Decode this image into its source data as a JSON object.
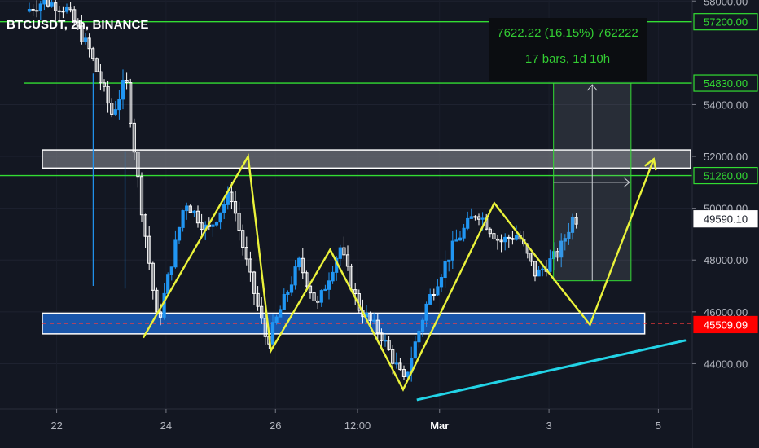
{
  "chart_title": "BTCUSDT, 2h, BINANCE",
  "info_box": {
    "line1": "7622.22 (16.15%) 762222",
    "line2": "17 bars, 1d 10h"
  },
  "colors": {
    "background": "#131722",
    "bull_candle": "#2196f3",
    "bear_candle": "#ffffff",
    "zigzag": "#eaf23a",
    "trendline": "#22d3e6",
    "level_line": "#33dd33",
    "support_zone_fill": "#1c62c2",
    "resistance_zone_fill": "#6f727a",
    "price_marker_red": "#ff0000"
  },
  "chart_data": {
    "type": "candlestick",
    "title": "BTCUSDT, 2h, BINANCE",
    "y_range": [
      42300,
      59600
    ],
    "y_ticks": [
      {
        "value": 58000,
        "label": "58000.00"
      },
      {
        "value": 54000,
        "label": "54000.00"
      },
      {
        "value": 52000,
        "label": "52000.00"
      },
      {
        "value": 50000,
        "label": "50000.00"
      },
      {
        "value": 48000,
        "label": "48000.00"
      },
      {
        "value": 46000,
        "label": "46000.00"
      },
      {
        "value": 44000,
        "label": "44000.00"
      }
    ],
    "price_labels": [
      {
        "value": 57200,
        "label": "57200.00",
        "style": "green"
      },
      {
        "value": 54830,
        "label": "54830.00",
        "style": "green"
      },
      {
        "value": 51260,
        "label": "51260.00",
        "style": "green"
      },
      {
        "value": 49590.1,
        "label": "49590.10",
        "style": "white"
      },
      {
        "value": 45509.09,
        "label": "45509.09",
        "style": "red"
      }
    ],
    "x_range": [
      "2021-02-21T12:00",
      "2021-03-05T12:00"
    ],
    "x_ticks": [
      {
        "t": "2021-02-22T00:00",
        "label": "22"
      },
      {
        "t": "2021-02-24T00:00",
        "label": "24"
      },
      {
        "t": "2021-02-26T00:00",
        "label": "26"
      },
      {
        "t": "2021-02-27T12:00",
        "label": "12:00"
      },
      {
        "t": "2021-03-01T00:00",
        "label": "Mar"
      },
      {
        "t": "2021-03-03T00:00",
        "label": "3"
      },
      {
        "t": "2021-03-05T00:00",
        "label": "5"
      }
    ],
    "anchors": [
      {
        "t": "2021-02-21T12:00",
        "price": 57600
      },
      {
        "t": "2021-02-21T20:00",
        "price": 58000
      },
      {
        "t": "2021-02-22T06:00",
        "price": 57700
      },
      {
        "t": "2021-02-22T16:00",
        "price": 56100
      },
      {
        "t": "2021-02-23T02:00",
        "price": 53600
      },
      {
        "t": "2021-02-23T08:00",
        "price": 55000
      },
      {
        "t": "2021-02-23T14:00",
        "price": 50600
      },
      {
        "t": "2021-02-23T22:00",
        "price": 45500
      },
      {
        "t": "2021-02-24T10:00",
        "price": 50300
      },
      {
        "t": "2021-02-24T20:00",
        "price": 49100
      },
      {
        "t": "2021-02-25T06:00",
        "price": 50600
      },
      {
        "t": "2021-02-25T14:00",
        "price": 47500
      },
      {
        "t": "2021-02-25T22:00",
        "price": 44800
      },
      {
        "t": "2021-02-26T12:00",
        "price": 47900
      },
      {
        "t": "2021-02-26T20:00",
        "price": 46200
      },
      {
        "t": "2021-02-27T06:00",
        "price": 48500
      },
      {
        "t": "2021-02-27T14:00",
        "price": 46200
      },
      {
        "t": "2021-02-28T00:00",
        "price": 45100
      },
      {
        "t": "2021-02-28T10:00",
        "price": 43300
      },
      {
        "t": "2021-02-28T20:00",
        "price": 46300
      },
      {
        "t": "2021-03-01T08:00",
        "price": 48600
      },
      {
        "t": "2021-03-01T18:00",
        "price": 49900
      },
      {
        "t": "2021-03-02T04:00",
        "price": 48700
      },
      {
        "t": "2021-03-02T12:00",
        "price": 49000
      },
      {
        "t": "2021-03-02T20:00",
        "price": 47400
      },
      {
        "t": "2021-03-03T06:00",
        "price": 48300
      },
      {
        "t": "2021-03-03T12:00",
        "price": 49590
      }
    ],
    "horizontal_levels": [
      {
        "name": "57200",
        "value": 57200,
        "t_start": "2021-02-21T12:00"
      },
      {
        "name": "54830",
        "value": 54830,
        "t_start": "2021-02-21T16:00"
      },
      {
        "name": "51260",
        "value": 51260,
        "t_start": "2021-02-21T12:00"
      }
    ],
    "zones": [
      {
        "name": "resistance",
        "top": 52250,
        "bottom": 51550,
        "t_start": "2021-02-21T12:00"
      },
      {
        "name": "support",
        "top": 45950,
        "bottom": 45150,
        "t_start": "2021-02-21T12:00",
        "t_end": "2021-03-04T18:00"
      }
    ],
    "zigzag": [
      {
        "t": "2021-02-23T14:00",
        "price": 45000
      },
      {
        "t": "2021-02-25T12:00",
        "price": 52000
      },
      {
        "t": "2021-02-25T22:00",
        "price": 44500
      },
      {
        "t": "2021-02-27T00:00",
        "price": 48400
      },
      {
        "t": "2021-02-28T08:00",
        "price": 43000
      },
      {
        "t": "2021-03-02T00:00",
        "price": 50200
      },
      {
        "t": "2021-03-03T00:00",
        "price": 47500
      },
      {
        "t": "2021-03-03T18:00",
        "price": 45500
      },
      {
        "t": "2021-03-04T22:00",
        "price": 51900
      }
    ],
    "trendline": [
      {
        "t": "2021-02-28T14:00",
        "price": 42600
      },
      {
        "t": "2021-03-05T12:00",
        "price": 44900
      }
    ],
    "measure_box": {
      "t_start": "2021-03-03T02:00",
      "t_end": "2021-03-04T12:00",
      "price_low": 47200,
      "price_high": 54830,
      "value": 7622.22,
      "percent": 16.15,
      "bars": 17
    }
  }
}
